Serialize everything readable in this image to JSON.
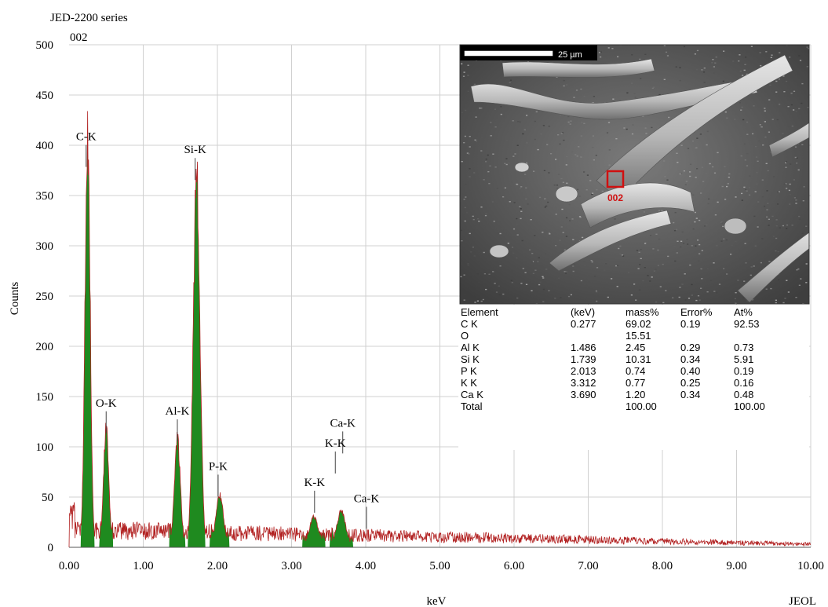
{
  "header": {
    "series": "JED-2200 series",
    "spectrum_id": "002"
  },
  "footer": {
    "brand": "JEOL"
  },
  "inset": {
    "scale_bar": "25 µm",
    "marker_label": "002",
    "table": {
      "headers": [
        "Element",
        "(keV)",
        "mass%",
        "Error%",
        "At%"
      ],
      "rows": [
        [
          "C  K",
          "0.277",
          "69.02",
          "0.19",
          "92.53"
        ],
        [
          "O",
          "",
          "15.51",
          "",
          ""
        ],
        [
          "Al K",
          "1.486",
          "2.45",
          "0.29",
          "0.73"
        ],
        [
          "Si K",
          "1.739",
          "10.31",
          "0.34",
          "5.91"
        ],
        [
          "P  K",
          "2.013",
          "0.74",
          "0.40",
          "0.19"
        ],
        [
          "K  K",
          "3.312",
          "0.77",
          "0.25",
          "0.16"
        ],
        [
          "Ca K",
          "3.690",
          "1.20",
          "0.34",
          "0.48"
        ],
        [
          "Total",
          "",
          "100.00",
          "",
          "100.00"
        ]
      ]
    }
  },
  "colors": {
    "fill": "#1f8a1f",
    "trace": "#b22222",
    "grid": "#d0d0d0",
    "marker": "#d01010"
  },
  "chart_data": {
    "type": "area",
    "xlabel": "keV",
    "ylabel": "Counts",
    "xlim": [
      0,
      10
    ],
    "ylim": [
      0,
      500
    ],
    "x_ticks": [
      "0.00",
      "1.00",
      "2.00",
      "3.00",
      "4.00",
      "5.00",
      "6.00",
      "7.00",
      "8.00",
      "9.00",
      "10.00"
    ],
    "y_ticks": [
      "0",
      "50",
      "100",
      "150",
      "200",
      "250",
      "300",
      "350",
      "400",
      "450",
      "500"
    ],
    "grid": true,
    "peaks": [
      {
        "keV": 0.25,
        "counts": 408,
        "width": 0.035
      },
      {
        "keV": 0.5,
        "counts": 118,
        "width": 0.035
      },
      {
        "keV": 1.46,
        "counts": 108,
        "width": 0.04
      },
      {
        "keV": 1.72,
        "counts": 368,
        "width": 0.045
      },
      {
        "keV": 2.03,
        "counts": 52,
        "width": 0.05
      },
      {
        "keV": 3.3,
        "counts": 30,
        "width": 0.06
      },
      {
        "keV": 3.67,
        "counts": 36,
        "width": 0.06
      }
    ],
    "labels": [
      {
        "text": "C-K",
        "keV": 0.23,
        "counts": 405
      },
      {
        "text": "Si-K",
        "keV": 1.7,
        "counts": 392
      },
      {
        "text": "O-K",
        "keV": 0.5,
        "counts": 140
      },
      {
        "text": "Al-K",
        "keV": 1.46,
        "counts": 132
      },
      {
        "text": "P-K",
        "keV": 2.01,
        "counts": 77
      },
      {
        "text": "Ca-K",
        "keV": 3.69,
        "counts": 120
      },
      {
        "text": "K-K",
        "keV": 3.59,
        "counts": 100
      },
      {
        "text": "K-K",
        "keV": 3.31,
        "counts": 61
      },
      {
        "text": "Ca-K",
        "keV": 4.01,
        "counts": 45
      }
    ]
  }
}
